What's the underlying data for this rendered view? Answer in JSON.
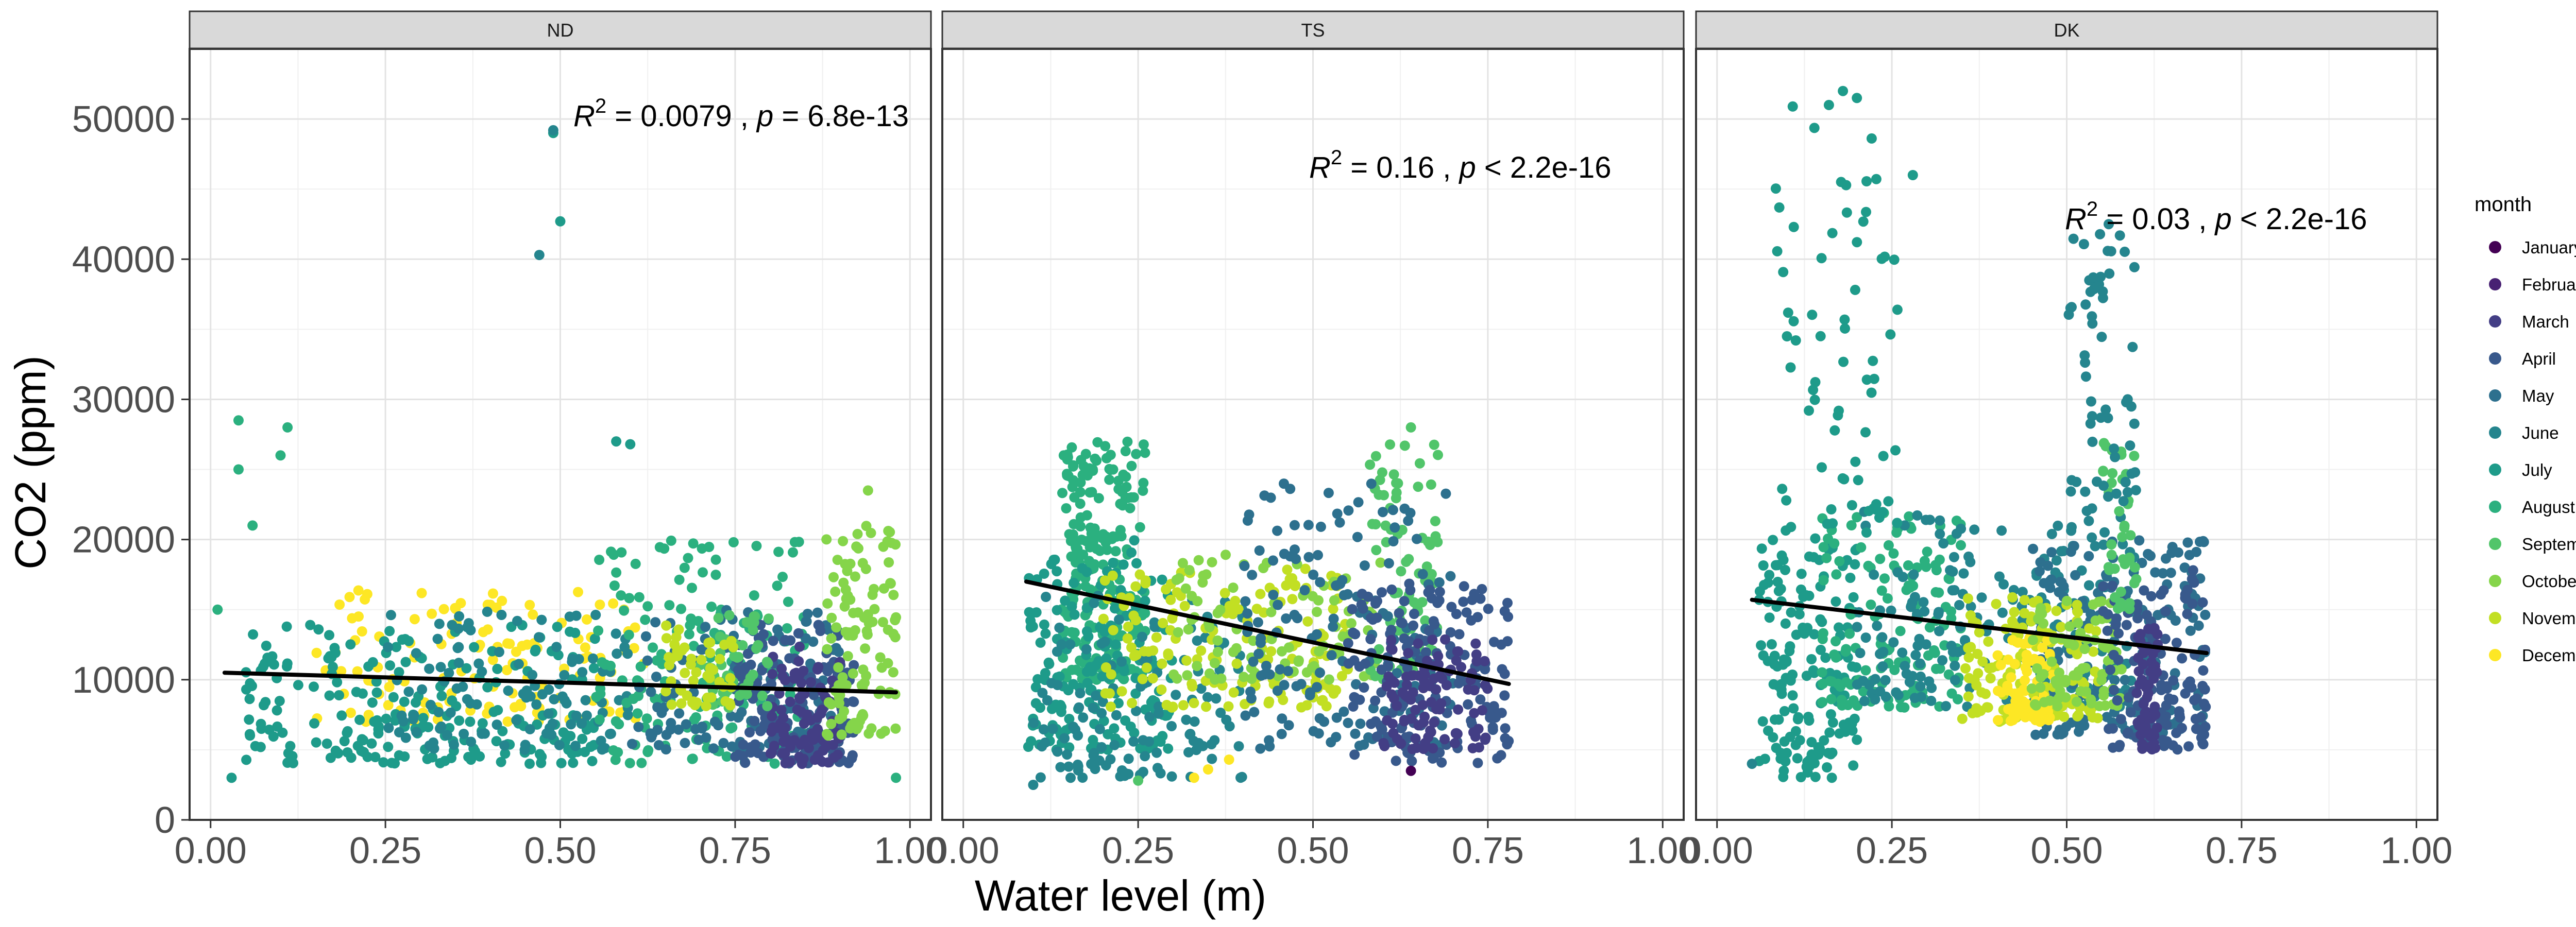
{
  "chart_data": {
    "type": "scatter",
    "xlabel": "Water level (m)",
    "ylabel": "CO2 (ppm)",
    "xlim": [
      -0.03,
      1.03
    ],
    "ylim": [
      0,
      55000
    ],
    "x_ticks": [
      0.0,
      0.25,
      0.5,
      0.75,
      1.0
    ],
    "x_tick_labels": [
      "0.00",
      "0.25",
      "0.50",
      "0.75",
      "1.00"
    ],
    "y_ticks": [
      0,
      10000,
      20000,
      30000,
      40000,
      50000
    ],
    "y_tick_labels": [
      "0",
      "10000",
      "20000",
      "30000",
      "40000",
      "50000"
    ],
    "grid": true,
    "legend": {
      "title": "month",
      "placement": "right",
      "entries": [
        {
          "label": "January",
          "color": "#440154"
        },
        {
          "label": "February",
          "color": "#482173"
        },
        {
          "label": "March",
          "color": "#433E85"
        },
        {
          "label": "April",
          "color": "#38598C"
        },
        {
          "label": "May",
          "color": "#2D708E"
        },
        {
          "label": "June",
          "color": "#25858E"
        },
        {
          "label": "July",
          "color": "#1E9B8A"
        },
        {
          "label": "August",
          "color": "#2BB07F"
        },
        {
          "label": "September",
          "color": "#51C56A"
        },
        {
          "label": "October",
          "color": "#85D54A"
        },
        {
          "label": "November",
          "color": "#C2DF23"
        },
        {
          "label": "December",
          "color": "#FDE725"
        }
      ]
    },
    "panels": [
      {
        "name": "ND",
        "annotation": {
          "r2": "0.0079",
          "p": "= 6.8e-13"
        },
        "trend": {
          "x": [
            0.02,
            0.98
          ],
          "y": [
            10500,
            9100
          ]
        },
        "clusters": [
          {
            "month": "December",
            "x": [
              0.14,
              0.62
            ],
            "y": [
              7000,
              16500
            ],
            "n": 120
          },
          {
            "month": "July",
            "x": [
              0.05,
              0.55
            ],
            "y": [
              4000,
              14000
            ],
            "n": 220
          },
          {
            "month": "June",
            "x": [
              0.25,
              0.6
            ],
            "y": [
              5000,
              15000
            ],
            "n": 120
          },
          {
            "month": "August",
            "x": [
              0.55,
              0.85
            ],
            "y": [
              4000,
              20000
            ],
            "n": 160
          },
          {
            "month": "May",
            "x": [
              0.6,
              0.9
            ],
            "y": [
              5000,
              15000
            ],
            "n": 130
          },
          {
            "month": "April",
            "x": [
              0.75,
              0.92
            ],
            "y": [
              4000,
              14000
            ],
            "n": 150
          },
          {
            "month": "March",
            "x": [
              0.8,
              0.9
            ],
            "y": [
              4000,
              12500
            ],
            "n": 90
          },
          {
            "month": "October",
            "x": [
              0.88,
              0.98
            ],
            "y": [
              6000,
              21000
            ],
            "n": 110
          },
          {
            "month": "September",
            "x": [
              0.7,
              0.8
            ],
            "y": [
              8000,
              15000
            ],
            "n": 50
          },
          {
            "month": "November",
            "x": [
              0.65,
              0.75
            ],
            "y": [
              8000,
              14000
            ],
            "n": 50
          }
        ],
        "outliers": [
          {
            "month": "July",
            "x": 0.49,
            "y": 49000
          },
          {
            "month": "June",
            "x": 0.49,
            "y": 49200
          },
          {
            "month": "July",
            "x": 0.5,
            "y": 42700
          },
          {
            "month": "June",
            "x": 0.47,
            "y": 40300
          },
          {
            "month": "August",
            "x": 0.04,
            "y": 28500
          },
          {
            "month": "August",
            "x": 0.11,
            "y": 28000
          },
          {
            "month": "August",
            "x": 0.04,
            "y": 25000
          },
          {
            "month": "July",
            "x": 0.58,
            "y": 27000
          },
          {
            "month": "July",
            "x": 0.6,
            "y": 26800
          },
          {
            "month": "August",
            "x": 0.06,
            "y": 21000
          },
          {
            "month": "August",
            "x": 0.1,
            "y": 26000
          },
          {
            "month": "July",
            "x": 0.03,
            "y": 3000
          },
          {
            "month": "August",
            "x": 0.01,
            "y": 15000
          },
          {
            "month": "October",
            "x": 0.94,
            "y": 23500
          },
          {
            "month": "August",
            "x": 0.98,
            "y": 3000
          }
        ]
      },
      {
        "name": "TS",
        "annotation": {
          "r2": "0.16",
          "p": "< 2.2e-16"
        },
        "trend": {
          "x": [
            0.09,
            0.78
          ],
          "y": [
            17000,
            9700
          ]
        },
        "clusters": [
          {
            "month": "August",
            "x": [
              0.14,
              0.26
            ],
            "y": [
              10000,
              27000
            ],
            "n": 230
          },
          {
            "month": "July",
            "x": [
              0.09,
              0.3
            ],
            "y": [
              5000,
              20000
            ],
            "n": 170
          },
          {
            "month": "June",
            "x": [
              0.1,
              0.4
            ],
            "y": [
              3000,
              16000
            ],
            "n": 130
          },
          {
            "month": "November",
            "x": [
              0.2,
              0.55
            ],
            "y": [
              8000,
              18000
            ],
            "n": 160
          },
          {
            "month": "October",
            "x": [
              0.3,
              0.6
            ],
            "y": [
              10000,
              19000
            ],
            "n": 90
          },
          {
            "month": "September",
            "x": [
              0.58,
              0.68
            ],
            "y": [
              10000,
              27000
            ],
            "n": 80
          },
          {
            "month": "May",
            "x": [
              0.4,
              0.7
            ],
            "y": [
              5000,
              24000
            ],
            "n": 150
          },
          {
            "month": "April",
            "x": [
              0.55,
              0.78
            ],
            "y": [
              4000,
              17000
            ],
            "n": 170
          },
          {
            "month": "March",
            "x": [
              0.6,
              0.75
            ],
            "y": [
              5000,
              13000
            ],
            "n": 100
          }
        ],
        "outliers": [
          {
            "month": "December",
            "x": 0.33,
            "y": 3000
          },
          {
            "month": "December",
            "x": 0.35,
            "y": 3600
          },
          {
            "month": "December",
            "x": 0.38,
            "y": 4300
          },
          {
            "month": "September",
            "x": 0.25,
            "y": 2800
          },
          {
            "month": "June",
            "x": 0.1,
            "y": 2500
          },
          {
            "month": "January",
            "x": 0.64,
            "y": 3500
          },
          {
            "month": "September",
            "x": 0.64,
            "y": 28000
          }
        ]
      },
      {
        "name": "DK",
        "annotation": {
          "r2": "0.03",
          "p": "< 2.2e-16"
        },
        "trend": {
          "x": [
            0.05,
            0.7
          ],
          "y": [
            15700,
            11900
          ]
        },
        "clusters": [
          {
            "month": "July",
            "x": [
              0.06,
              0.2
            ],
            "y": [
              3000,
              20000
            ],
            "n": 160
          },
          {
            "month": "August",
            "x": [
              0.15,
              0.35
            ],
            "y": [
              8000,
              22000
            ],
            "n": 140
          },
          {
            "month": "June",
            "x": [
              0.2,
              0.6
            ],
            "y": [
              8000,
              22000
            ],
            "n": 200
          },
          {
            "month": "May",
            "x": [
              0.45,
              0.7
            ],
            "y": [
              6000,
              20000
            ],
            "n": 160
          },
          {
            "month": "November",
            "x": [
              0.35,
              0.55
            ],
            "y": [
              7000,
              16000
            ],
            "n": 130
          },
          {
            "month": "December",
            "x": [
              0.4,
              0.48
            ],
            "y": [
              7000,
              13000
            ],
            "n": 70
          },
          {
            "month": "October",
            "x": [
              0.45,
              0.58
            ],
            "y": [
              8000,
              16000
            ],
            "n": 80
          },
          {
            "month": "April",
            "x": [
              0.55,
              0.7
            ],
            "y": [
              5000,
              18000
            ],
            "n": 120
          },
          {
            "month": "March",
            "x": [
              0.6,
              0.63
            ],
            "y": [
              5000,
              14000
            ],
            "n": 60
          },
          {
            "month": "September",
            "x": [
              0.55,
              0.6
            ],
            "y": [
              15000,
              27000
            ],
            "n": 40
          },
          {
            "month": "July",
            "x": [
              0.08,
              0.26
            ],
            "y": [
              20000,
              51000
            ],
            "n": 70
          },
          {
            "month": "June",
            "x": [
              0.5,
              0.6
            ],
            "y": [
              22000,
              42000
            ],
            "n": 60
          }
        ],
        "outliers": [
          {
            "month": "July",
            "x": 0.18,
            "y": 52000
          },
          {
            "month": "July",
            "x": 0.2,
            "y": 51500
          },
          {
            "month": "July",
            "x": 0.16,
            "y": 51000
          },
          {
            "month": "June",
            "x": 0.56,
            "y": 42500
          },
          {
            "month": "July",
            "x": 0.28,
            "y": 46000
          },
          {
            "month": "July",
            "x": 0.1,
            "y": 34500
          },
          {
            "month": "June",
            "x": 0.05,
            "y": 4000
          }
        ]
      }
    ]
  }
}
